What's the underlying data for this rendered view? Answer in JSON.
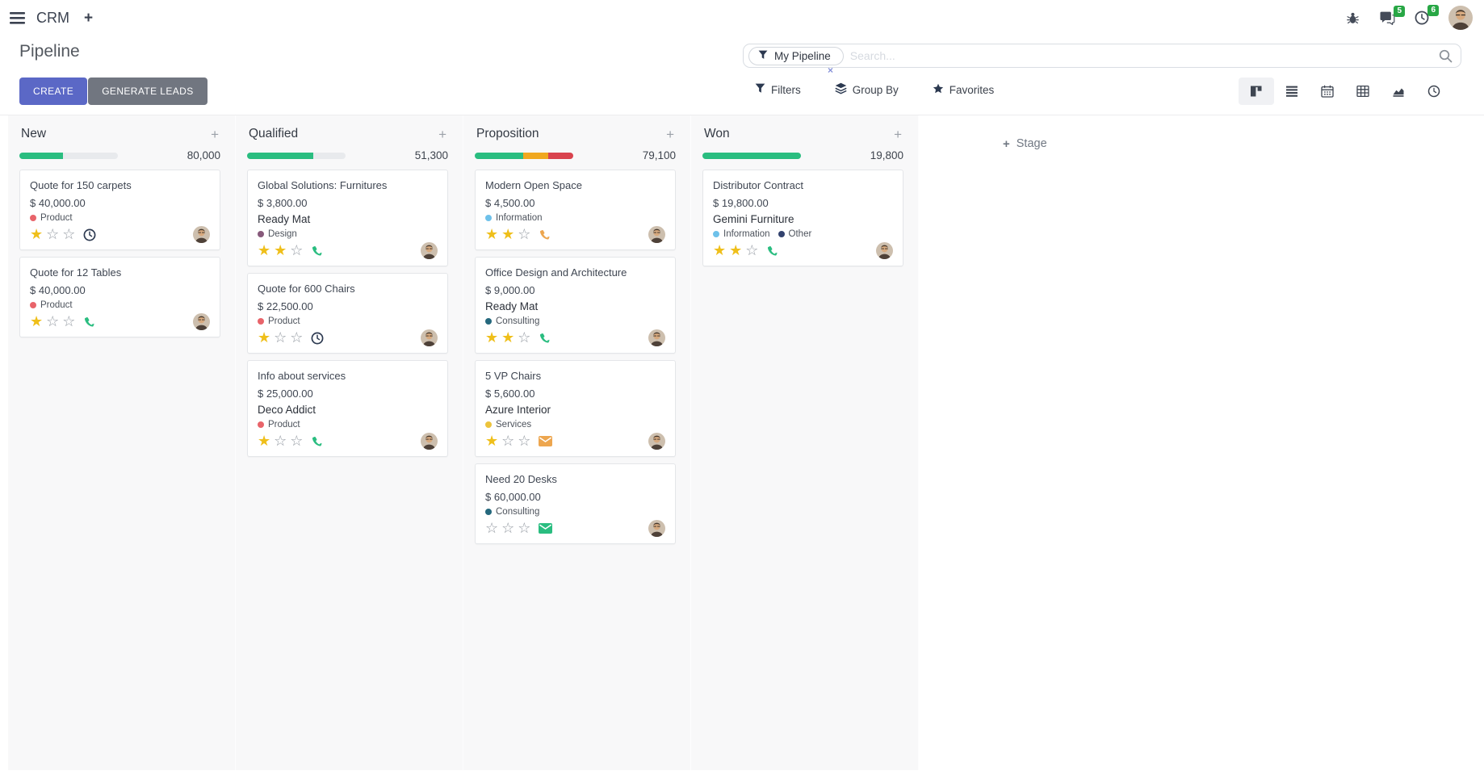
{
  "navbar": {
    "app_name": "CRM",
    "messages_badge": "5",
    "activities_badge": "6"
  },
  "control_panel": {
    "title": "Pipeline",
    "buttons": {
      "create": "CREATE",
      "generate_leads": "GENERATE LEADS"
    },
    "search": {
      "facet_label": "My Pipeline",
      "placeholder": "Search...",
      "remove_facet": "×"
    },
    "menus": {
      "filters": "Filters",
      "group_by": "Group By",
      "favorites": "Favorites"
    }
  },
  "view_switcher": {
    "active": "kanban",
    "views": [
      "kanban",
      "list",
      "calendar",
      "pivot",
      "graph",
      "activity"
    ]
  },
  "icons": {
    "menu-icon": "hamburger bars",
    "add-icon": "+",
    "bug-icon": "bug",
    "messages-icon": "speech bubbles",
    "activities-icon": "clock",
    "filter-icon": "funnel",
    "group-by-icon": "stacked layers",
    "favorites-icon": "star",
    "search-icon": "magnifier",
    "kanban-view-icon": "kanban board",
    "list-view-icon": "horizontal bars",
    "calendar-view-icon": "calendar",
    "pivot-view-icon": "table grid",
    "graph-view-icon": "area chart",
    "activity-view-icon": "clock",
    "phone-icon": "phone handset",
    "email-icon": "envelope",
    "clock-icon": "clock",
    "star-filled-icon": "★",
    "star-empty-icon": "☆",
    "plus-icon": "+"
  },
  "colors": {
    "accent": "#5b68c6",
    "secondary_button": "#717680",
    "success": "#2abd80",
    "warning": "#f0a81f",
    "danger": "#d9434e",
    "progress_track": "#e8eaed",
    "badge_green": "#28a745",
    "star_gold": "#efbf1a"
  },
  "board": {
    "add_stage_label": "Stage",
    "stars_max": 3,
    "columns": [
      {
        "name": "New",
        "counter": "80,000",
        "progress": [
          {
            "color": "#2abd80",
            "pct": 44
          },
          {
            "color": "#e8eaed",
            "pct": 56
          }
        ],
        "cards": [
          {
            "title": "Quote for 150 carpets",
            "amount": "$ 40,000.00",
            "partner": "",
            "tags": [
              {
                "label": "Product",
                "color": "#e8646a"
              }
            ],
            "stars": 1,
            "activity": {
              "icon": "clock",
              "color": "#2c3950"
            }
          },
          {
            "title": "Quote for 12 Tables",
            "amount": "$ 40,000.00",
            "partner": "",
            "tags": [
              {
                "label": "Product",
                "color": "#e8646a"
              }
            ],
            "stars": 1,
            "activity": {
              "icon": "phone",
              "color": "#2abd80"
            }
          }
        ]
      },
      {
        "name": "Qualified",
        "counter": "51,300",
        "progress": [
          {
            "color": "#2abd80",
            "pct": 67
          },
          {
            "color": "#e8eaed",
            "pct": 33
          }
        ],
        "cards": [
          {
            "title": "Global Solutions: Furnitures",
            "amount": "$ 3,800.00",
            "partner": "Ready Mat",
            "tags": [
              {
                "label": "Design",
                "color": "#875a7b"
              }
            ],
            "stars": 2,
            "activity": {
              "icon": "phone",
              "color": "#2abd80"
            }
          },
          {
            "title": "Quote for 600 Chairs",
            "amount": "$ 22,500.00",
            "partner": "",
            "tags": [
              {
                "label": "Product",
                "color": "#e8646a"
              }
            ],
            "stars": 1,
            "activity": {
              "icon": "clock",
              "color": "#2c3950"
            }
          },
          {
            "title": "Info about services",
            "amount": "$ 25,000.00",
            "partner": "Deco Addict",
            "tags": [
              {
                "label": "Product",
                "color": "#e8646a"
              }
            ],
            "stars": 1,
            "activity": {
              "icon": "phone",
              "color": "#2abd80"
            }
          }
        ]
      },
      {
        "name": "Proposition",
        "counter": "79,100",
        "progress": [
          {
            "color": "#2abd80",
            "pct": 49
          },
          {
            "color": "#f0a81f",
            "pct": 26
          },
          {
            "color": "#d9434e",
            "pct": 25
          }
        ],
        "cards": [
          {
            "title": "Modern Open Space",
            "amount": "$ 4,500.00",
            "partner": "",
            "tags": [
              {
                "label": "Information",
                "color": "#6ec1ea"
              }
            ],
            "stars": 2,
            "activity": {
              "icon": "phone",
              "color": "#eda64f"
            }
          },
          {
            "title": "Office Design and Architecture",
            "amount": "$ 9,000.00",
            "partner": "Ready Mat",
            "tags": [
              {
                "label": "Consulting",
                "color": "#25687d"
              }
            ],
            "stars": 2,
            "activity": {
              "icon": "phone",
              "color": "#2abd80"
            }
          },
          {
            "title": "5 VP Chairs",
            "amount": "$ 5,600.00",
            "partner": "Azure Interior",
            "tags": [
              {
                "label": "Services",
                "color": "#edc43c"
              }
            ],
            "stars": 1,
            "activity": {
              "icon": "email",
              "color": "#eda64f"
            }
          },
          {
            "title": "Need 20 Desks",
            "amount": "$ 60,000.00",
            "partner": "",
            "tags": [
              {
                "label": "Consulting",
                "color": "#25687d"
              }
            ],
            "stars": 0,
            "activity": {
              "icon": "email",
              "color": "#2abd80"
            }
          }
        ]
      },
      {
        "name": "Won",
        "counter": "19,800",
        "progress": [
          {
            "color": "#2abd80",
            "pct": 100
          }
        ],
        "cards": [
          {
            "title": "Distributor Contract",
            "amount": "$ 19,800.00",
            "partner": "Gemini Furniture",
            "tags": [
              {
                "label": "Information",
                "color": "#6ec1ea"
              },
              {
                "label": "Other",
                "color": "#32426e"
              }
            ],
            "stars": 2,
            "activity": {
              "icon": "phone",
              "color": "#2abd80"
            }
          }
        ]
      }
    ]
  }
}
